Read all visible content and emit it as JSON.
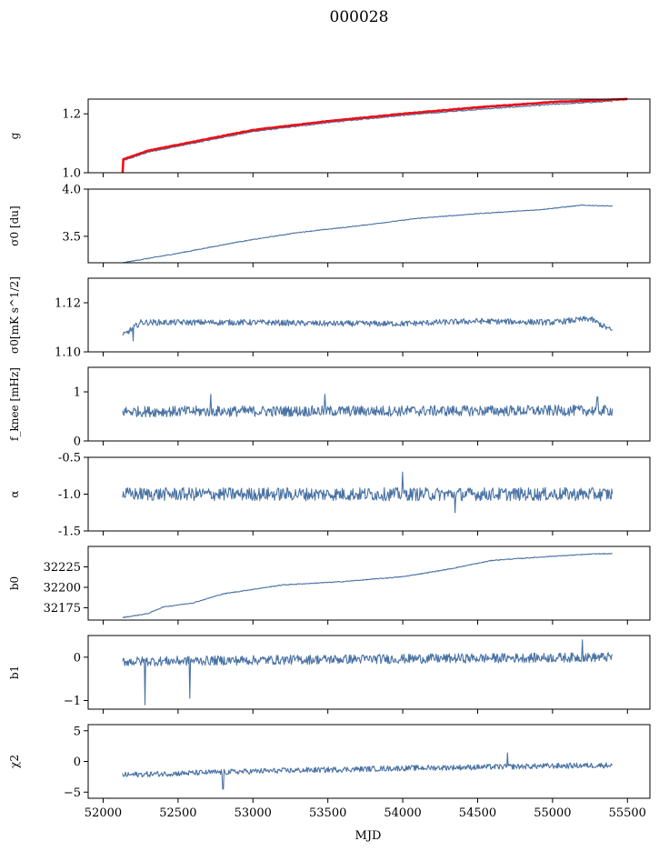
{
  "chart_data": {
    "type": "line",
    "title": "000028",
    "xlabel": "MJD",
    "xlim": [
      51900,
      55650
    ],
    "xticks": [
      52000,
      52500,
      53000,
      53500,
      54000,
      54500,
      55000,
      55500
    ],
    "x_start": 52130,
    "x_end": 55400,
    "panels": [
      {
        "ylabel": "g",
        "ylim": [
          1.0,
          1.25
        ],
        "yticks": [
          1.0,
          1.2
        ],
        "series": [
          {
            "color": "#4a73a4",
            "knots": [
              [
                52130,
                1.04
              ],
              [
                52300,
                1.07
              ],
              [
                52600,
                1.1
              ],
              [
                53000,
                1.14
              ],
              [
                53500,
                1.17
              ],
              [
                54000,
                1.195
              ],
              [
                54500,
                1.215
              ],
              [
                55000,
                1.232
              ],
              [
                55400,
                1.243
              ]
            ],
            "noise": 0.002,
            "spikes": []
          },
          {
            "color": "#e8121a",
            "knots": [
              [
                52130,
                1.045
              ],
              [
                52300,
                1.075
              ],
              [
                52600,
                1.105
              ],
              [
                53000,
                1.145
              ],
              [
                53500,
                1.175
              ],
              [
                54000,
                1.2
              ],
              [
                54500,
                1.222
              ],
              [
                55000,
                1.24
              ],
              [
                55500,
                1.25
              ]
            ],
            "noise": 0.001,
            "spikes": [
              [
                52130,
                1.0
              ]
            ],
            "x_end": 55500
          }
        ]
      },
      {
        "ylabel": "σ0 [du]",
        "ylim": [
          3.22,
          4.0
        ],
        "yticks": [
          3.5,
          4.0
        ],
        "series": [
          {
            "color": "#4a73a4",
            "knots": [
              [
                52130,
                3.22
              ],
              [
                52500,
                3.32
              ],
              [
                52900,
                3.44
              ],
              [
                53300,
                3.54
              ],
              [
                53700,
                3.61
              ],
              [
                54100,
                3.69
              ],
              [
                54500,
                3.74
              ],
              [
                54900,
                3.78
              ],
              [
                55200,
                3.83
              ],
              [
                55400,
                3.82
              ]
            ],
            "noise": 0.004,
            "spikes": []
          }
        ]
      },
      {
        "ylabel": "σ0[mK s^1/2]",
        "ylim": [
          1.1,
          1.13
        ],
        "yticks": [
          1.1,
          1.12
        ],
        "series": [
          {
            "color": "#4a73a4",
            "knots": [
              [
                52130,
                1.1065
              ],
              [
                52250,
                1.112
              ],
              [
                52500,
                1.112
              ],
              [
                53000,
                1.112
              ],
              [
                53500,
                1.1115
              ],
              [
                54000,
                1.1115
              ],
              [
                54500,
                1.1125
              ],
              [
                55000,
                1.112
              ],
              [
                55250,
                1.1135
              ],
              [
                55400,
                1.1085
              ]
            ],
            "noise": 0.0012,
            "spikes": [
              [
                52200,
                1.1045
              ]
            ]
          }
        ]
      },
      {
        "ylabel": "f_knee [mHz]",
        "ylim": [
          0,
          1.5
        ],
        "yticks": [
          0,
          1
        ],
        "series": [
          {
            "color": "#4a73a4",
            "knots": [
              [
                52130,
                0.6
              ],
              [
                55400,
                0.62
              ]
            ],
            "noise": 0.11,
            "spikes": [
              [
                52720,
                0.95
              ],
              [
                53480,
                0.95
              ],
              [
                55300,
                0.9
              ]
            ]
          }
        ]
      },
      {
        "ylabel": "α",
        "ylim": [
          -1.5,
          -0.5
        ],
        "yticks": [
          -1.5,
          -1.0,
          -0.5
        ],
        "series": [
          {
            "color": "#4a73a4",
            "knots": [
              [
                52130,
                -1.0
              ],
              [
                55400,
                -1.0
              ]
            ],
            "noise": 0.09,
            "spikes": [
              [
                54000,
                -0.7
              ],
              [
                54350,
                -1.25
              ]
            ]
          }
        ]
      },
      {
        "ylabel": "b0",
        "ylim": [
          32160,
          32250
        ],
        "yticks": [
          32175,
          32200,
          32225
        ],
        "series": [
          {
            "color": "#4a73a4",
            "knots": [
              [
                52130,
                32163
              ],
              [
                52300,
                32168
              ],
              [
                52400,
                32176
              ],
              [
                52600,
                32181
              ],
              [
                52800,
                32192
              ],
              [
                53200,
                32203
              ],
              [
                53600,
                32207
              ],
              [
                54000,
                32213
              ],
              [
                54300,
                32222
              ],
              [
                54600,
                32233
              ],
              [
                55000,
                32238
              ],
              [
                55300,
                32241
              ],
              [
                55400,
                32241
              ]
            ],
            "noise": 0.5,
            "spikes": []
          }
        ]
      },
      {
        "ylabel": "b1",
        "ylim": [
          -1.2,
          0.5
        ],
        "yticks": [
          -1,
          0
        ],
        "series": [
          {
            "color": "#4a73a4",
            "knots": [
              [
                52130,
                -0.1
              ],
              [
                53500,
                -0.05
              ],
              [
                55400,
                0.0
              ]
            ],
            "noise": 0.11,
            "spikes": [
              [
                52280,
                -1.1
              ],
              [
                52580,
                -0.95
              ],
              [
                55200,
                0.4
              ]
            ]
          }
        ]
      },
      {
        "ylabel": "χ2",
        "ylim": [
          -6,
          6
        ],
        "yticks": [
          -5,
          0,
          5
        ],
        "series": [
          {
            "color": "#4a73a4",
            "knots": [
              [
                52130,
                -2.2
              ],
              [
                53000,
                -1.6
              ],
              [
                54000,
                -1.1
              ],
              [
                55400,
                -0.6
              ]
            ],
            "noise": 0.45,
            "spikes": [
              [
                52800,
                -4.5
              ],
              [
                54700,
                1.4
              ]
            ]
          }
        ]
      }
    ]
  }
}
